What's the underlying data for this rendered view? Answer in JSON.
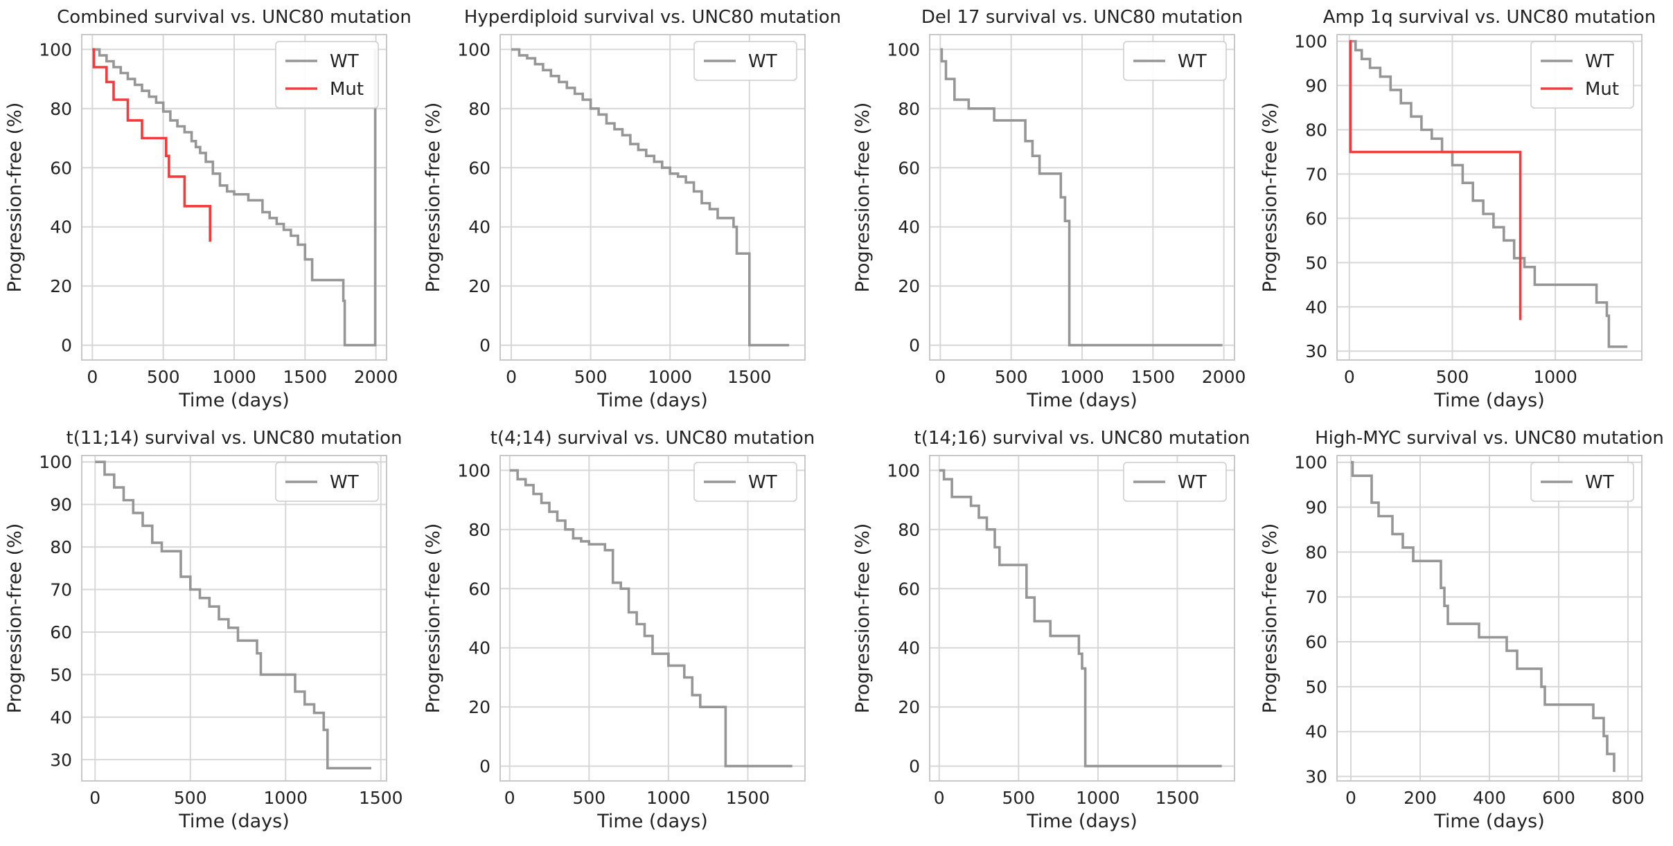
{
  "colors": {
    "wt": "#969696",
    "mut": "#f03c3c",
    "grid": "#d7d7d7",
    "spine": "#c8c8c8",
    "legend_border": "#cccccc"
  },
  "chart_data": [
    {
      "type": "line",
      "title": "Combined survival vs. UNC80 mutation",
      "xlabel": "Time (days)",
      "ylabel": "Progression-free (%)",
      "xlim": [
        -75,
        2075
      ],
      "ylim": [
        -5,
        105
      ],
      "xticks": [
        0,
        500,
        1000,
        1500,
        2000
      ],
      "yticks": [
        0,
        20,
        40,
        60,
        80,
        100
      ],
      "grid": true,
      "legend": "top-right",
      "series": [
        {
          "name": "WT",
          "color": "#969696",
          "x": [
            0,
            50,
            100,
            150,
            200,
            250,
            300,
            350,
            400,
            450,
            500,
            550,
            600,
            650,
            700,
            730,
            760,
            800,
            850,
            900,
            950,
            1000,
            1100,
            1200,
            1250,
            1300,
            1350,
            1400,
            1450,
            1500,
            1550,
            1740,
            1770,
            1780,
            1990,
            1995
          ],
          "y": [
            100,
            98,
            96,
            94,
            92,
            90,
            88,
            86,
            84,
            82,
            79,
            76,
            74,
            72,
            69,
            67,
            65,
            62,
            58,
            54,
            52,
            51,
            49,
            45,
            43,
            41,
            39,
            37,
            34,
            29,
            22,
            22,
            15,
            0,
            0,
            100
          ]
        },
        {
          "name": "Mut",
          "color": "#f03c3c",
          "x": [
            0,
            10,
            100,
            150,
            250,
            350,
            500,
            520,
            540,
            650,
            750,
            830
          ],
          "y": [
            100,
            94,
            89,
            83,
            76,
            70,
            70,
            64,
            57,
            47,
            47,
            35
          ]
        }
      ]
    },
    {
      "type": "line",
      "title": "Hyperdiploid survival vs. UNC80 mutation",
      "xlabel": "Time (days)",
      "ylabel": "Progression-free (%)",
      "xlim": [
        -70,
        1850
      ],
      "ylim": [
        -5,
        105
      ],
      "xticks": [
        0,
        500,
        1000,
        1500
      ],
      "yticks": [
        0,
        20,
        40,
        60,
        80,
        100
      ],
      "grid": true,
      "legend": "top-right",
      "series": [
        {
          "name": "WT",
          "color": "#969696",
          "x": [
            0,
            50,
            100,
            150,
            200,
            250,
            300,
            350,
            400,
            450,
            500,
            550,
            600,
            650,
            700,
            750,
            800,
            850,
            900,
            950,
            1000,
            1050,
            1100,
            1150,
            1200,
            1250,
            1300,
            1350,
            1400,
            1420,
            1460,
            1500,
            1750
          ],
          "y": [
            100,
            98,
            97,
            95,
            93,
            91,
            89,
            87,
            85,
            83,
            80,
            78,
            75,
            73,
            71,
            68,
            66,
            64,
            62,
            60,
            58,
            57,
            55,
            52,
            48,
            46,
            43,
            43,
            40,
            31,
            31,
            0,
            0
          ]
        }
      ]
    },
    {
      "type": "line",
      "title": "Del 17 survival vs. UNC80 mutation",
      "xlabel": "Time (days)",
      "ylabel": "Progression-free (%)",
      "xlim": [
        -75,
        2075
      ],
      "ylim": [
        -5,
        105
      ],
      "xticks": [
        0,
        500,
        1000,
        1500,
        2000
      ],
      "yticks": [
        0,
        20,
        40,
        60,
        80,
        100
      ],
      "grid": true,
      "legend": "top-right",
      "series": [
        {
          "name": "WT",
          "color": "#969696",
          "x": [
            0,
            10,
            40,
            100,
            200,
            380,
            600,
            650,
            700,
            850,
            880,
            900,
            910,
            1990
          ],
          "y": [
            100,
            96,
            90,
            83,
            80,
            76,
            69,
            64,
            58,
            50,
            42,
            42,
            0,
            0
          ]
        }
      ]
    },
    {
      "type": "line",
      "title": "Amp 1q survival vs. UNC80 mutation",
      "xlabel": "Time (days)",
      "ylabel": "Progression-free (%)",
      "xlim": [
        -60,
        1420
      ],
      "ylim": [
        28,
        101.5
      ],
      "xticks": [
        0,
        500,
        1000
      ],
      "yticks": [
        30,
        40,
        50,
        60,
        70,
        80,
        90,
        100
      ],
      "grid": true,
      "legend": "top-right",
      "series": [
        {
          "name": "WT",
          "color": "#969696",
          "x": [
            0,
            30,
            60,
            100,
            150,
            200,
            250,
            300,
            350,
            400,
            450,
            500,
            550,
            600,
            650,
            700,
            750,
            800,
            850,
            900,
            1000,
            1100,
            1200,
            1250,
            1260,
            1350
          ],
          "y": [
            100,
            98,
            96,
            94,
            92,
            89,
            86,
            83,
            80,
            78,
            75,
            72,
            68,
            64,
            61,
            58,
            55,
            51,
            49,
            45,
            45,
            45,
            41,
            38,
            31,
            31
          ]
        },
        {
          "name": "Mut",
          "color": "#f03c3c",
          "x": [
            0,
            5,
            825,
            830
          ],
          "y": [
            100,
            75,
            75,
            37
          ]
        }
      ]
    },
    {
      "type": "line",
      "title": "t(11;14) survival vs. UNC80 mutation",
      "xlabel": "Time (days)",
      "ylabel": "Progression-free (%)",
      "xlim": [
        -70,
        1530
      ],
      "ylim": [
        25,
        101.5
      ],
      "xticks": [
        0,
        500,
        1000,
        1500
      ],
      "yticks": [
        30,
        40,
        50,
        60,
        70,
        80,
        90,
        100
      ],
      "grid": true,
      "legend": "top-right",
      "series": [
        {
          "name": "WT",
          "color": "#969696",
          "x": [
            0,
            50,
            100,
            150,
            200,
            250,
            300,
            350,
            400,
            450,
            500,
            550,
            600,
            650,
            700,
            750,
            800,
            850,
            870,
            900,
            1000,
            1050,
            1100,
            1150,
            1200,
            1220,
            1450
          ],
          "y": [
            100,
            97,
            94,
            91,
            88,
            85,
            81,
            79,
            79,
            73,
            70,
            68,
            66,
            63,
            61,
            58,
            58,
            55,
            50,
            50,
            50,
            46,
            43,
            41,
            37,
            28,
            28
          ]
        }
      ]
    },
    {
      "type": "line",
      "title": "t(4;14) survival vs. UNC80 mutation",
      "xlabel": "Time (days)",
      "ylabel": "Progression-free (%)",
      "xlim": [
        -60,
        1860
      ],
      "ylim": [
        -5,
        105
      ],
      "xticks": [
        0,
        500,
        1000,
        1500
      ],
      "yticks": [
        0,
        20,
        40,
        60,
        80,
        100
      ],
      "grid": true,
      "legend": "top-right",
      "series": [
        {
          "name": "WT",
          "color": "#969696",
          "x": [
            0,
            50,
            100,
            150,
            200,
            250,
            300,
            350,
            400,
            450,
            500,
            550,
            600,
            650,
            700,
            750,
            800,
            850,
            900,
            1000,
            1100,
            1150,
            1200,
            1250,
            1300,
            1350,
            1360,
            1780
          ],
          "y": [
            100,
            97,
            95,
            92,
            89,
            86,
            83,
            80,
            77,
            76,
            75,
            75,
            73,
            62,
            60,
            52,
            48,
            44,
            38,
            34,
            30,
            24,
            20,
            20,
            20,
            20,
            0,
            0
          ]
        }
      ]
    },
    {
      "type": "line",
      "title": "t(14;16) survival vs. UNC80 mutation",
      "xlabel": "Time (days)",
      "ylabel": "Progression-free (%)",
      "xlim": [
        -60,
        1860
      ],
      "ylim": [
        -5,
        105
      ],
      "xticks": [
        0,
        500,
        1000,
        1500
      ],
      "yticks": [
        0,
        20,
        40,
        60,
        80,
        100
      ],
      "grid": true,
      "legend": "top-right",
      "series": [
        {
          "name": "WT",
          "color": "#969696",
          "x": [
            0,
            30,
            80,
            200,
            250,
            300,
            350,
            380,
            500,
            550,
            600,
            700,
            850,
            880,
            900,
            920,
            1780
          ],
          "y": [
            100,
            97,
            91,
            88,
            84,
            80,
            74,
            68,
            68,
            57,
            49,
            44,
            44,
            38,
            33,
            0,
            0
          ]
        }
      ]
    },
    {
      "type": "line",
      "title": "High-MYC survival vs. UNC80 mutation",
      "xlabel": "Time (days)",
      "ylabel": "Progression-free (%)",
      "xlim": [
        -40,
        840
      ],
      "ylim": [
        29,
        101.5
      ],
      "xticks": [
        0,
        200,
        400,
        600,
        800
      ],
      "yticks": [
        30,
        40,
        50,
        60,
        70,
        80,
        90,
        100
      ],
      "grid": true,
      "legend": "top-right",
      "series": [
        {
          "name": "WT",
          "color": "#969696",
          "x": [
            0,
            5,
            60,
            80,
            120,
            150,
            180,
            260,
            270,
            280,
            370,
            450,
            480,
            550,
            560,
            700,
            730,
            740,
            760
          ],
          "y": [
            100,
            97,
            91,
            88,
            84,
            81,
            78,
            72,
            68,
            64,
            61,
            58,
            54,
            50,
            46,
            43,
            39,
            35,
            31
          ]
        }
      ]
    }
  ]
}
